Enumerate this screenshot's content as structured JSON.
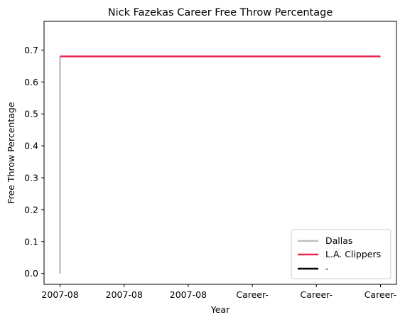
{
  "chart_data": {
    "type": "line",
    "title": "Nick Fazekas Career Free Throw Percentage",
    "xlabel": "Year",
    "ylabel": "Free Throw Percentage",
    "x_ticks": [
      "2007-08",
      "2007-08",
      "2007-08",
      "Career-",
      "Career-",
      "Career-"
    ],
    "y_ticks": [
      "0.0",
      "0.1",
      "0.2",
      "0.3",
      "0.4",
      "0.5",
      "0.6",
      "0.7"
    ],
    "xlim": [
      -0.25,
      5.25
    ],
    "ylim": [
      -0.034,
      0.79
    ],
    "grid": false,
    "legend_position": "lower right",
    "series": [
      {
        "name": "Dallas",
        "color": "#c0c0c0",
        "points": [
          [
            0,
            0.0
          ],
          [
            0,
            0.68
          ]
        ]
      },
      {
        "name": "L.A. Clippers",
        "color": "#e8284e",
        "points": [
          [
            0,
            0.68
          ],
          [
            5,
            0.68
          ]
        ]
      },
      {
        "name": "-",
        "color": "#000000",
        "points": []
      }
    ]
  }
}
